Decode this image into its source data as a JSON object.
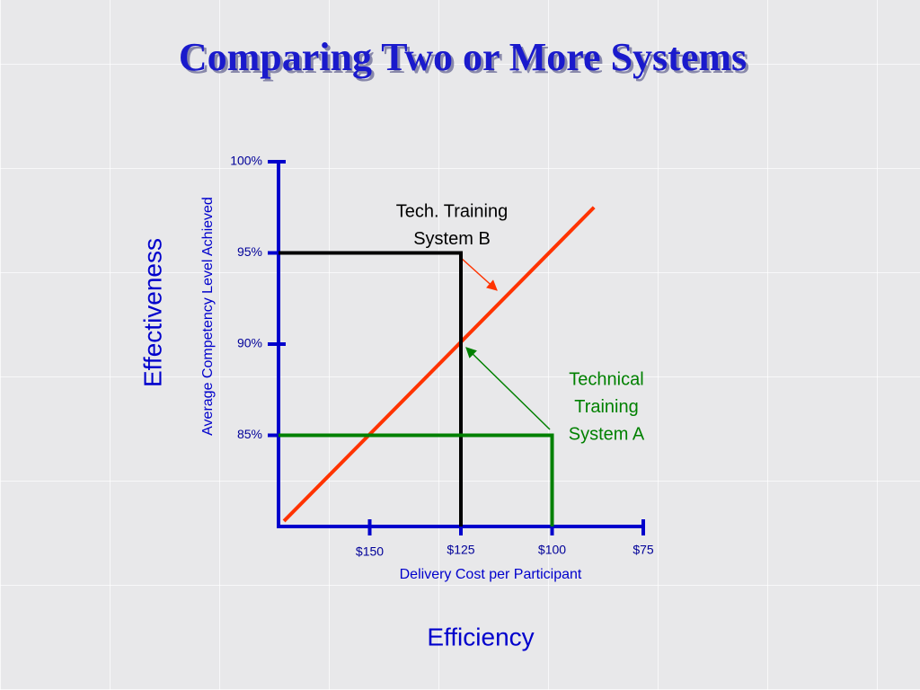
{
  "chart_data": {
    "type": "line",
    "title": "Comparing Two or More Systems",
    "y_label_outer": "Effectiveness",
    "y_label": "Average Competency Level Achieved",
    "x_label": "Delivery Cost per Participant",
    "x_label_outer": "Efficiency",
    "xlim": [
      175,
      75
    ],
    "ylim": [
      80,
      100
    ],
    "xticks": [
      {
        "value": 150,
        "label": "$150"
      },
      {
        "value": 125,
        "label": "$125"
      },
      {
        "value": 100,
        "label": "$100"
      },
      {
        "value": 75,
        "label": "$75"
      }
    ],
    "yticks": [
      {
        "value": 85,
        "label": "85%"
      },
      {
        "value": 90,
        "label": "90%"
      },
      {
        "value": 95,
        "label": "95%"
      },
      {
        "value": 100,
        "label": "100%"
      }
    ],
    "series": [
      {
        "color": "#ff3300",
        "x": [
          173.5,
          88.5
        ],
        "values": [
          80.3,
          97.5
        ]
      },
      {
        "color": "#000000",
        "x": [
          175,
          125,
          125
        ],
        "values": [
          95,
          95,
          80
        ]
      },
      {
        "color": "#008000",
        "x": [
          175,
          100,
          100
        ],
        "values": [
          85,
          85,
          80
        ]
      }
    ],
    "annotations": [
      {
        "text": [
          "Tech. Training",
          "System B"
        ],
        "color": "#000000"
      },
      {
        "text": [
          "Technical",
          "Training",
          "System A"
        ],
        "color": "#008000"
      }
    ]
  }
}
